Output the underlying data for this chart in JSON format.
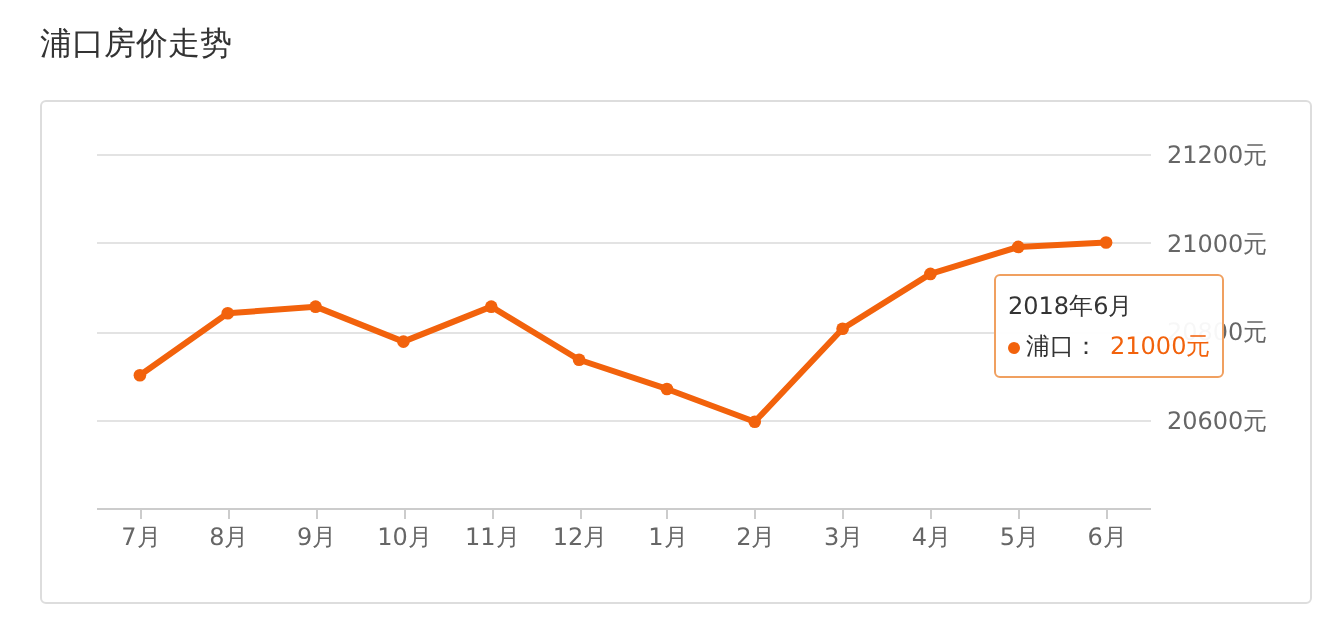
{
  "chart_data": {
    "type": "line",
    "title": "浦口房价走势",
    "categories": [
      "7月",
      "8月",
      "9月",
      "10月",
      "11月",
      "12月",
      "1月",
      "2月",
      "3月",
      "4月",
      "5月",
      "6月"
    ],
    "series": [
      {
        "name": "浦口：",
        "color": "#f2620c",
        "values": [
          20700,
          20840,
          20855,
          20776,
          20855,
          20735,
          20669,
          20595,
          20805,
          20929,
          20990,
          21000
        ]
      }
    ],
    "ylim": [
      20400,
      21200
    ],
    "yticks": [
      {
        "value": 20600,
        "label": "20600元"
      },
      {
        "value": 20800,
        "label": "20800元"
      },
      {
        "value": 21000,
        "label": "21000元"
      },
      {
        "value": 21200,
        "label": "21200元"
      }
    ],
    "grid": "y",
    "marker": "circle",
    "line_style": "solid",
    "annotations": [
      {
        "text": "2018年6月",
        "x": "6月",
        "y": 21000
      },
      "21000元"
    ]
  }
}
